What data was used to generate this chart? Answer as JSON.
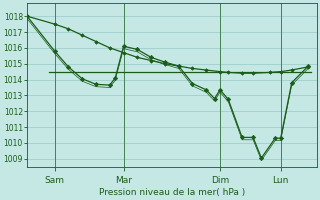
{
  "background_color": "#c5e8e5",
  "grid_color": "#9ecece",
  "line_color": "#1a5c1a",
  "title": "Pression niveau de la mer( hPa )",
  "ylim": [
    1008.5,
    1018.8
  ],
  "yticks": [
    1009,
    1010,
    1011,
    1012,
    1013,
    1014,
    1015,
    1016,
    1017,
    1018
  ],
  "xlim": [
    0,
    10.5
  ],
  "day_ticks": [
    {
      "label": "Sam",
      "x": 1.0
    },
    {
      "label": "Mar",
      "x": 3.5
    },
    {
      "label": "Dim",
      "x": 7.0
    },
    {
      "label": "Lun",
      "x": 9.2
    }
  ],
  "flat_line": {
    "x": [
      0.8,
      10.3
    ],
    "y": [
      1014.5,
      1014.5
    ]
  },
  "diag_line": {
    "x": [
      0.0,
      1.0,
      1.5,
      2.0,
      2.5,
      3.0,
      3.5,
      4.0,
      4.5,
      5.0,
      5.5,
      6.0,
      6.5,
      7.0,
      7.3,
      7.8,
      8.2,
      8.8,
      9.2,
      9.6,
      10.2
    ],
    "y": [
      1018.0,
      1017.5,
      1017.2,
      1016.8,
      1016.4,
      1016.0,
      1015.7,
      1015.4,
      1015.2,
      1015.0,
      1014.85,
      1014.7,
      1014.6,
      1014.5,
      1014.45,
      1014.4,
      1014.4,
      1014.45,
      1014.5,
      1014.6,
      1014.8
    ]
  },
  "zigzag_line": {
    "x": [
      0.0,
      1.0,
      1.5,
      2.0,
      2.5,
      3.0,
      3.2,
      3.5,
      4.0,
      4.5,
      5.0,
      5.5,
      6.0,
      6.5,
      6.8,
      7.0,
      7.3,
      7.8,
      8.2,
      8.5,
      9.0,
      9.2,
      9.6,
      10.2
    ],
    "y": [
      1018.0,
      1015.8,
      1014.8,
      1014.05,
      1013.7,
      1013.65,
      1014.1,
      1016.1,
      1015.9,
      1015.4,
      1015.1,
      1014.85,
      1013.75,
      1013.35,
      1012.8,
      1013.35,
      1012.75,
      1010.35,
      1010.35,
      1009.05,
      1010.3,
      1010.3,
      1013.8,
      1014.85
    ]
  }
}
